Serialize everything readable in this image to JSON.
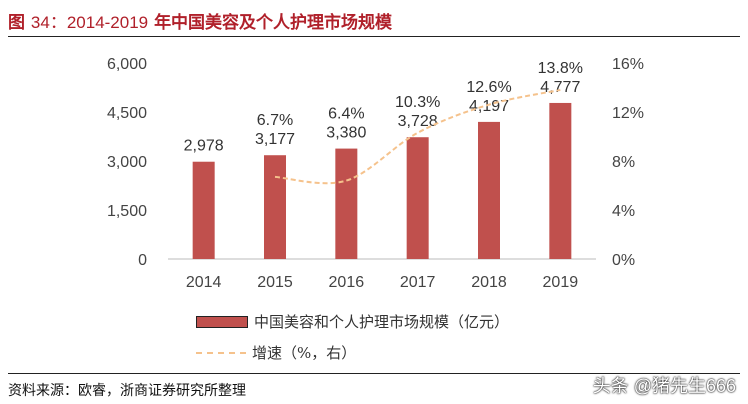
{
  "title": {
    "prefix": "图",
    "number": "34：2014-2019",
    "text": "年中国美容及个人护理市场规模"
  },
  "chart_data": {
    "type": "bar",
    "title": "2014-2019年中国美容及个人护理市场规模",
    "categories": [
      "2014",
      "2015",
      "2016",
      "2017",
      "2018",
      "2019"
    ],
    "series": [
      {
        "name": "中国美容和个人护理市场规模（亿元）",
        "type": "bar",
        "axis": "left",
        "color": "#c0504d",
        "values": [
          2978,
          3177,
          3380,
          3728,
          4197,
          4777
        ],
        "labels": [
          "2,978",
          "3,177",
          "3,380",
          "3,728",
          "4,197",
          "4,777"
        ]
      },
      {
        "name": "增速（%，右）",
        "type": "line",
        "axis": "right",
        "color": "#f5c28c",
        "values": [
          null,
          6.7,
          6.4,
          10.3,
          12.6,
          13.8
        ],
        "labels": [
          "",
          "6.7%",
          "6.4%",
          "10.3%",
          "12.6%",
          "13.8%"
        ]
      }
    ],
    "ylim_left": [
      0,
      6000
    ],
    "yticks_left": [
      "0",
      "1,500",
      "3,000",
      "4,500",
      "6,000"
    ],
    "ylim_right": [
      0,
      16
    ],
    "yticks_right": [
      "0%",
      "4%",
      "8%",
      "12%",
      "16%"
    ],
    "grid": false,
    "legend_position": "bottom"
  },
  "legend": {
    "bar": "中国美容和个人护理市场规模（亿元）",
    "line": "增速（%，右）"
  },
  "source": "资料来源：欧睿，浙商证券研究所整理",
  "watermark": "头条 @猪先生666"
}
